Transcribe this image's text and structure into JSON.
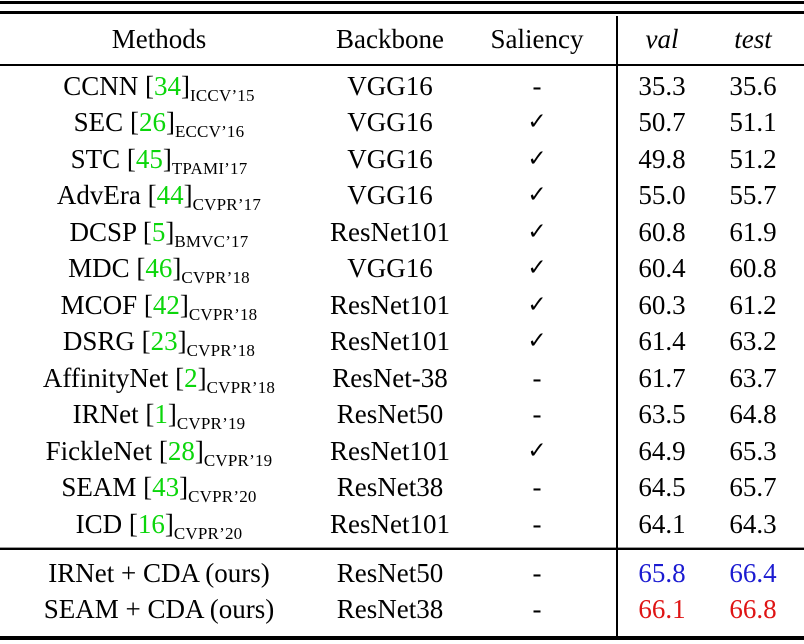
{
  "table": {
    "headers": {
      "methods": "Methods",
      "backbone": "Backbone",
      "saliency": "Saliency",
      "val": "val",
      "test": "test"
    },
    "citation_brackets": {
      "open": "[",
      "close": "]"
    },
    "colors": {
      "citation_green": "#0bd60b",
      "ours_blue": "#1b1bd1",
      "ours_red": "#df1414"
    },
    "rows": [
      {
        "method": "CCNN",
        "cite": "34",
        "venue": "ICCV’15",
        "backbone": "VGG16",
        "saliency": "-",
        "val": "35.3",
        "test": "35.6"
      },
      {
        "method": "SEC",
        "cite": "26",
        "venue": "ECCV’16",
        "backbone": "VGG16",
        "saliency": "✓",
        "val": "50.7",
        "test": "51.1"
      },
      {
        "method": "STC",
        "cite": "45",
        "venue": "TPAMI’17",
        "backbone": "VGG16",
        "saliency": "✓",
        "val": "49.8",
        "test": "51.2"
      },
      {
        "method": "AdvEra",
        "cite": "44",
        "venue": "CVPR’17",
        "backbone": "VGG16",
        "saliency": "✓",
        "val": "55.0",
        "test": "55.7"
      },
      {
        "method": "DCSP",
        "cite": "5",
        "venue": "BMVC’17",
        "backbone": "ResNet101",
        "saliency": "✓",
        "val": "60.8",
        "test": "61.9"
      },
      {
        "method": "MDC",
        "cite": "46",
        "venue": "CVPR’18",
        "backbone": "VGG16",
        "saliency": "✓",
        "val": "60.4",
        "test": "60.8"
      },
      {
        "method": "MCOF",
        "cite": "42",
        "venue": "CVPR’18",
        "backbone": "ResNet101",
        "saliency": "✓",
        "val": "60.3",
        "test": "61.2"
      },
      {
        "method": "DSRG",
        "cite": "23",
        "venue": "CVPR’18",
        "backbone": "ResNet101",
        "saliency": "✓",
        "val": "61.4",
        "test": "63.2"
      },
      {
        "method": "AffinityNet",
        "cite": "2",
        "venue": "CVPR’18",
        "backbone": "ResNet-38",
        "saliency": "-",
        "val": "61.7",
        "test": "63.7"
      },
      {
        "method": "IRNet",
        "cite": "1",
        "venue": "CVPR’19",
        "backbone": "ResNet50",
        "saliency": "-",
        "val": "63.5",
        "test": "64.8"
      },
      {
        "method": "FickleNet",
        "cite": "28",
        "venue": "CVPR’19",
        "backbone": "ResNet101",
        "saliency": "✓",
        "val": "64.9",
        "test": "65.3"
      },
      {
        "method": "SEAM",
        "cite": "43",
        "venue": "CVPR’20",
        "backbone": "ResNet38",
        "saliency": "-",
        "val": "64.5",
        "test": "65.7"
      },
      {
        "method": "ICD",
        "cite": "16",
        "venue": "CVPR’20",
        "backbone": "ResNet101",
        "saliency": "-",
        "val": "64.1",
        "test": "64.3"
      }
    ],
    "ours_rows": [
      {
        "method": "IRNet + CDA (ours)",
        "backbone": "ResNet50",
        "saliency": "-",
        "val": "65.8",
        "test": "66.4",
        "color": "ours_blue"
      },
      {
        "method": "SEAM + CDA (ours)",
        "backbone": "ResNet38",
        "saliency": "-",
        "val": "66.1",
        "test": "66.8",
        "color": "ours_red"
      }
    ]
  }
}
